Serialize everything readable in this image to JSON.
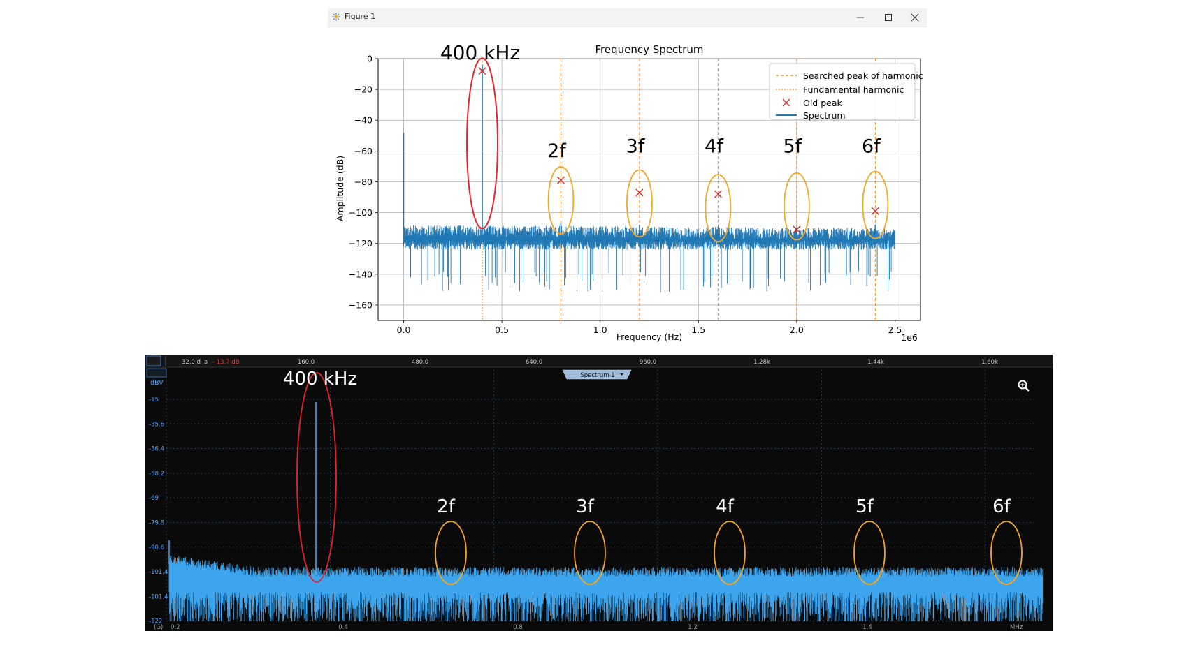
{
  "window": {
    "title": "Figure 1",
    "icons": [
      "app-icon",
      "minimize-icon",
      "maximize-icon",
      "close-icon"
    ]
  },
  "top_plot": {
    "annotation_fundamental": "400 kHz",
    "harmonic_labels": [
      "2f",
      "3f",
      "4f",
      "5f",
      "6f"
    ],
    "colors": {
      "spectrum": "#1f77b4",
      "dashed_line": "#ff7f0e",
      "old_peak": "#d62728",
      "fundamental_ellipse": "#e8242a",
      "harmonic_ellipse": "#f5a623"
    }
  },
  "bottom_scope": {
    "top_ruler": {
      "ticks": [
        "160.0",
        "480.0",
        "640.0",
        "960.0",
        "1.28k",
        "1.44k",
        "1.60k"
      ],
      "left_value": "32.0 d",
      "left_suffix": "a",
      "red_value": "- 13.7 dB"
    },
    "spectrum_button": "Spectrum 1",
    "y_unit": "dBV",
    "y_ticks": [
      "-15",
      "-35.6",
      "-36.4",
      "-58.2",
      "-69",
      "-79.8",
      "-90.6",
      "-101.4",
      "-101.4",
      "-122"
    ],
    "x_ticks": [
      "0.4",
      "0.8",
      "1.2",
      "1.4"
    ],
    "x_left": "0.2",
    "x_unit": "MHz",
    "annotation_fundamental": "400 kHz",
    "harmonic_labels": [
      "2f",
      "3f",
      "4f",
      "5f",
      "6f"
    ],
    "icons": [
      "zoom-icon"
    ],
    "colors": {
      "background": "#0a0a0a",
      "trace": "#3da4ee",
      "grid": "#2f4a66",
      "label": "#4aa3ff",
      "fundamental_ellipse": "#e8242a",
      "harmonic_ellipse": "#f5a623"
    }
  },
  "chart_data": [
    {
      "type": "line",
      "title": "Frequency Spectrum",
      "xlabel": "Frequency (Hz)",
      "ylabel": "Amplitude (dB)",
      "x_offset_label": "1e6",
      "xlim": [
        -0.13,
        2.63
      ],
      "ylim": [
        -170,
        0
      ],
      "xticks": [
        0.0,
        0.5,
        1.0,
        1.5,
        2.0,
        2.5
      ],
      "xtick_labels": [
        "0.0",
        "0.5",
        "1.0",
        "1.5",
        "2.0",
        "2.5"
      ],
      "yticks": [
        0,
        -20,
        -40,
        -60,
        -80,
        -100,
        -120,
        -140,
        -160
      ],
      "ytick_labels": [
        "0",
        "−20",
        "−40",
        "−60",
        "−80",
        "−100",
        "−120",
        "−140",
        "−160"
      ],
      "grid": true,
      "legend_position": "top-right",
      "series": [
        {
          "name": "Searched peak of harmonic",
          "style": "dashed",
          "x": [
            0.8,
            1.2,
            1.6,
            2.0,
            2.4
          ]
        },
        {
          "name": "Fundamental harmonic",
          "style": "dashed",
          "x": [
            0.4
          ]
        },
        {
          "name": "Old peak",
          "marker": "x",
          "x": [
            0.4,
            0.8,
            1.2,
            1.6,
            2.0,
            2.4
          ],
          "y": [
            -8,
            -79,
            -87,
            -88,
            -111,
            -99
          ]
        },
        {
          "name": "Spectrum",
          "noise_floor_db": -122,
          "noise_band_db": [
            -112,
            -138
          ],
          "dc_spike_db": -48,
          "peaks": [
            {
              "x": 0.4,
              "y": -4
            },
            {
              "x": 0.8,
              "y": -107
            },
            {
              "x": 1.2,
              "y": -108
            },
            {
              "x": 1.6,
              "y": -109
            },
            {
              "x": 2.0,
              "y": -111
            },
            {
              "x": 2.4,
              "y": -108
            }
          ]
        }
      ]
    },
    {
      "type": "line",
      "x_unit": "MHz",
      "xlim": [
        0.2,
        1.65
      ],
      "ylim": [
        -122,
        -15
      ],
      "fundamental_mhz": 0.4,
      "harmonics_mhz": [
        0.8,
        1.2,
        1.6,
        2.0,
        2.4
      ],
      "peak_dbv": -15,
      "noise_floor_dbv": -107
    }
  ]
}
